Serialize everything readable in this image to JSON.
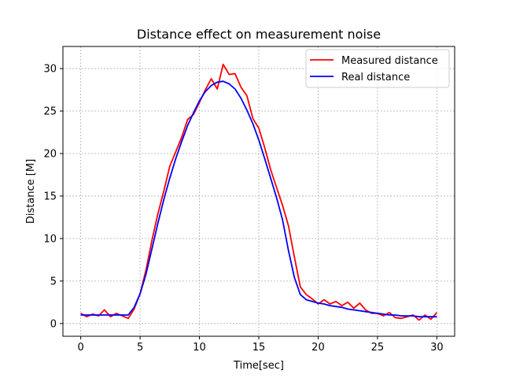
{
  "chart_data": {
    "type": "line",
    "title": "Distance effect on measurement noise",
    "xlabel": "Time[sec]",
    "ylabel": "Distance [M]",
    "xlim": [
      -1.5,
      31.5
    ],
    "ylim": [
      -1.5,
      32.6
    ],
    "xticks": [
      0,
      5,
      10,
      15,
      20,
      25,
      30
    ],
    "yticks": [
      0,
      5,
      10,
      15,
      20,
      25,
      30
    ],
    "grid": true,
    "legend_position": "top-right",
    "series": [
      {
        "name": "Measured distance",
        "color": "#ff0000",
        "x": [
          0,
          0.5,
          1,
          1.5,
          2,
          2.5,
          3,
          3.5,
          4,
          4.5,
          5,
          5.5,
          6,
          6.5,
          7,
          7.5,
          8,
          8.5,
          9,
          9.5,
          10,
          10.5,
          11,
          11.5,
          12,
          12.5,
          13,
          13.5,
          14,
          14.5,
          15,
          15.5,
          16,
          16.5,
          17,
          17.5,
          18,
          18.5,
          19,
          19.5,
          20,
          20.5,
          21,
          21.5,
          22,
          22.5,
          23,
          23.5,
          24,
          24.5,
          25,
          25.5,
          26,
          26.5,
          27,
          27.5,
          28,
          28.5,
          29,
          29.5,
          30
        ],
        "y": [
          1.2,
          0.8,
          1.1,
          0.9,
          1.6,
          0.8,
          1.2,
          0.9,
          0.6,
          1.7,
          3.5,
          6.3,
          9.8,
          12.9,
          15.6,
          18.5,
          20.2,
          21.9,
          24.0,
          24.6,
          26.0,
          27.5,
          28.8,
          27.6,
          30.5,
          29.3,
          29.4,
          27.8,
          26.8,
          24.1,
          23.0,
          20.7,
          18.1,
          16.0,
          13.9,
          11.5,
          7.8,
          4.3,
          3.4,
          2.9,
          2.3,
          2.8,
          2.3,
          2.6,
          2.1,
          2.5,
          1.8,
          2.4,
          1.6,
          1.2,
          1.2,
          0.9,
          1.3,
          0.7,
          0.6,
          0.8,
          1.0,
          0.4,
          1.0,
          0.5,
          1.3
        ]
      },
      {
        "name": "Real distance",
        "color": "#0000ff",
        "x": [
          0,
          0.5,
          1,
          1.5,
          2,
          2.5,
          3,
          3.5,
          4,
          4.5,
          5,
          5.5,
          6,
          6.5,
          7,
          7.5,
          8,
          8.5,
          9,
          9.5,
          10,
          10.5,
          11,
          11.5,
          12,
          12.5,
          13,
          13.5,
          14,
          14.5,
          15,
          15.5,
          16,
          16.5,
          17,
          17.5,
          18,
          18.5,
          19,
          19.5,
          20,
          20.5,
          21,
          21.5,
          22,
          22.5,
          23,
          23.5,
          24,
          24.5,
          25,
          25.5,
          26,
          26.5,
          27,
          27.5,
          28,
          28.5,
          29,
          29.5,
          30
        ],
        "y": [
          1.0,
          1.0,
          1.0,
          1.0,
          1.0,
          1.0,
          1.0,
          1.0,
          1.0,
          1.9,
          3.5,
          5.8,
          8.8,
          11.8,
          14.6,
          17.1,
          19.4,
          21.4,
          23.3,
          24.8,
          26.2,
          27.3,
          28.0,
          28.4,
          28.5,
          28.2,
          27.6,
          26.5,
          25.1,
          23.5,
          21.6,
          19.4,
          17.1,
          14.8,
          12.2,
          8.6,
          5.4,
          3.4,
          2.8,
          2.6,
          2.4,
          2.3,
          2.1,
          2.0,
          1.9,
          1.7,
          1.6,
          1.5,
          1.4,
          1.3,
          1.2,
          1.1,
          1.0,
          1.0,
          0.9,
          0.9,
          0.9,
          0.8,
          0.8,
          0.8,
          0.8
        ]
      }
    ]
  }
}
